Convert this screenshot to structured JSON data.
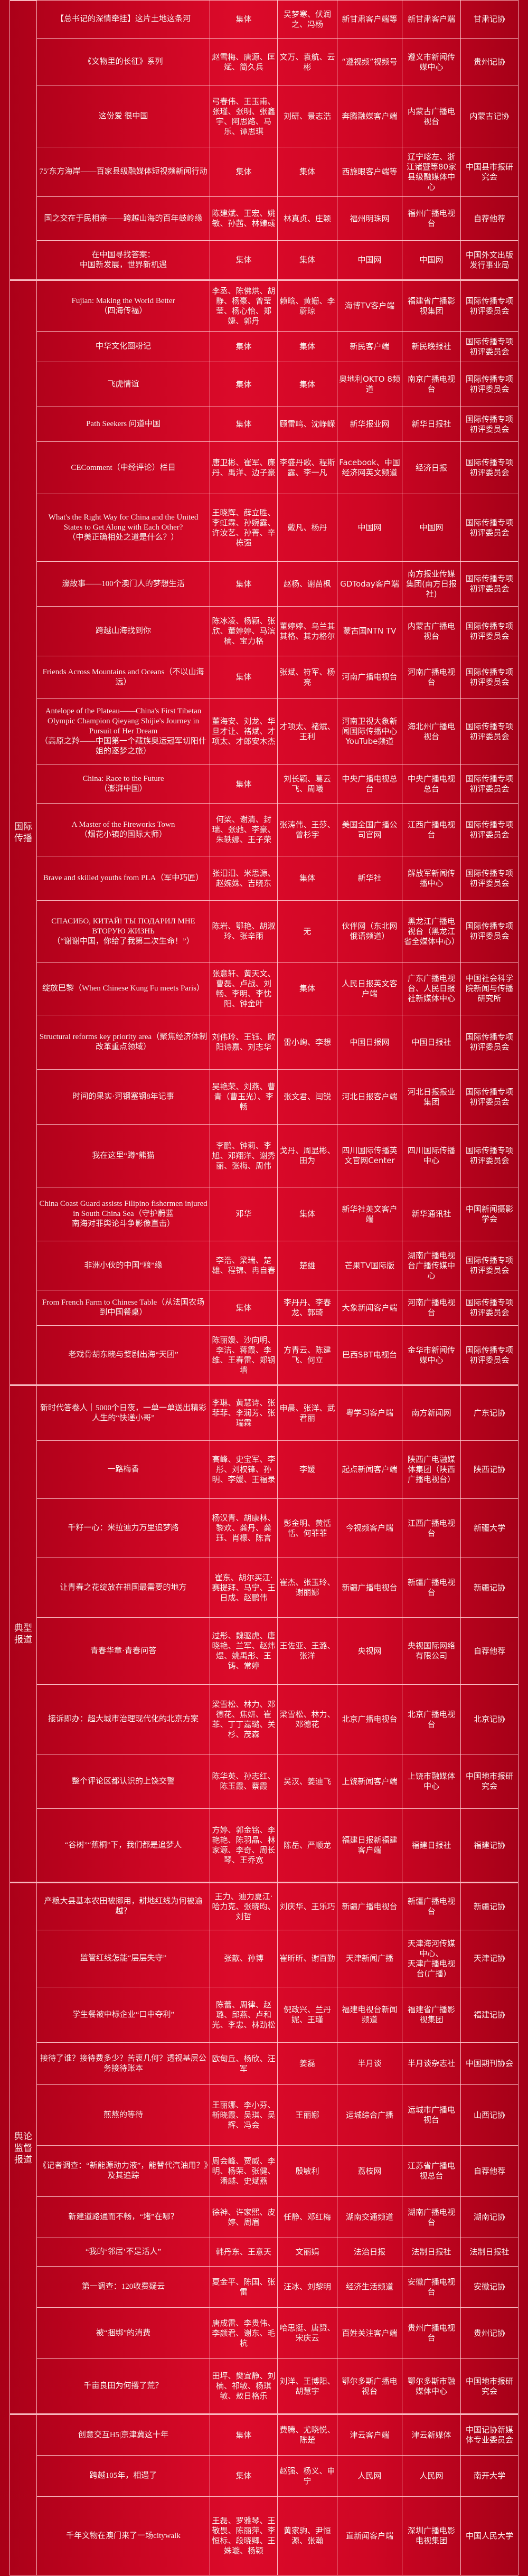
{
  "colors": {
    "background": "#c80522",
    "border": "#ffcdd2",
    "text": "#fff3f0"
  },
  "sections": [
    {
      "label": "",
      "rows": [
        {
          "title": "【总书记的深情牵挂】这片土地这条河",
          "authors": "集体",
          "editors": "吴梦寒、伏润之、冯杨",
          "platform": "新甘肃客户端等",
          "unit": "新甘肃客户端",
          "recommender": "甘肃记协"
        },
        {
          "title": "《文物里的长征》系列",
          "authors": "赵雪梅、唐源、匡斌、简久兵",
          "editors": "文万、袁航、云彬",
          "platform": "“遵视频”视频号",
          "unit": "遵义市新闻传媒中心",
          "recommender": "贵州记协"
        },
        {
          "title": "这份爱 很中国",
          "authors": "弓春伟、王玉甫、张瑾、张明、张鑫宇、阿思路、马乐、谭思琪",
          "editors": "刘研、景志浩",
          "platform": "奔腾融媒客户端",
          "unit": "内蒙古广播电视台",
          "recommender": "内蒙古记协"
        },
        {
          "title": "75′东方海岸——百家县级融媒体短视频新闻行动",
          "authors": "集体",
          "editors": "集体",
          "platform": "西施眼客户端等",
          "unit": "辽宁喀左、浙江诸暨等80家县级融媒体中心",
          "recommender": "中国县市报研究会"
        },
        {
          "title": "国之交在于民相亲——跨越山海的百年鼓岭缘",
          "authors": "陈建斌、王宏、姚敏、孙茜、林臻彧",
          "editors": "林真贞、庄颖",
          "platform": "福州明珠网",
          "unit": "福州广播电视台",
          "recommender": "自荐他荐"
        },
        {
          "title": "在中国寻找答案：\n中国新发展，世界新机遇",
          "authors": "集体",
          "editors": "集体",
          "platform": "中国网",
          "unit": "中国网",
          "recommender": "中国外文出版发行事业局"
        }
      ]
    },
    {
      "label": "国际\n传播",
      "rows": [
        {
          "title": "Fujian: Making the World Better\n（四海传福）",
          "authors": "李丞、陈佛烘、胡静、杨豪、曾莹莹、杨心怡、郑婕、郭丹",
          "editors": "赖晗、黄姗、李蔚琼",
          "platform": "海博TV客户端",
          "unit": "福建省广播影视集团",
          "recommender": "国际传播专项初评委员会"
        },
        {
          "title": "中华文化圈粉记",
          "authors": "集体",
          "editors": "集体",
          "platform": "新民客户端",
          "unit": "新民晚报社",
          "recommender": "国际传播专项初评委员会"
        },
        {
          "title": "飞虎情谊",
          "authors": "集体",
          "editors": "集体",
          "platform": "奥地利OKTO 8频道",
          "unit": "南京广播电视台",
          "recommender": "国际传播专项初评委员会"
        },
        {
          "title": "Path Seekers 问道中国",
          "authors": "集体",
          "editors": "顾雷鸣、沈峥嵘",
          "platform": "新华报业网",
          "unit": "新华日报社",
          "recommender": "国际传播专项初评委员会"
        },
        {
          "title": "CEComment（中经评论）栏目",
          "authors": "唐卫彬、崔军、廉丹、禹洋、边子豪",
          "editors": "李盛丹歌、程斯露、李一凡",
          "platform": "Facebook、中国经济网英文频道",
          "unit": "经济日报",
          "recommender": "国际传播专项初评委员会"
        },
        {
          "title": "What's the Right Way for China and the United States to Get Along with Each Other?\n（中美正确相处之道是什么？）",
          "authors": "王晓辉、薛立胜、李虹霖、孙婉露、许汝艺、孙菁、辛栋强",
          "editors": "戴凡、杨丹",
          "platform": "中国网",
          "unit": "中国网",
          "recommender": "国际传播专项初评委员会"
        },
        {
          "title": "濠故事——100个澳门人的梦想生活",
          "authors": "集体",
          "editors": "赵杨、谢苗枫",
          "platform": "GDToday客户端",
          "unit": "南方报业传媒集团(南方日报社)",
          "recommender": "国际传播专项初评委员会"
        },
        {
          "title": "跨越山海找到你",
          "authors": "陈冰凌、杨颖、张欣、董婷婷、马滨楠、宝力格",
          "editors": "董婷婷、乌兰其其格、其力格尔",
          "platform": "蒙古国NTN TV",
          "unit": "内蒙古广播电视台",
          "recommender": "国际传播专项初评委员会"
        },
        {
          "title": "Friends Across Mountains and Oceans（不以山海远）",
          "authors": "集体",
          "editors": "张斌、符军、杨亮",
          "platform": "河南广播电视台",
          "unit": "河南广播电视台",
          "recommender": "国际传播专项初评委员会"
        },
        {
          "title": "Antelope of the Plateau——China's First Tibetan Olympic Champion Qieyang Shijie's Journey in Pursuit of Her Dream\n（高原之羚——中国第一个藏族奥运冠军切阳什姐的逐梦之旅）",
          "authors": "董海安、刘龙、华旦才让、褚斌、才项太、才郎安木杰",
          "editors": "才项太、褚斌、王利",
          "platform": "河南卫视大象新闻国际传播中心YouTube频道",
          "unit": "海北州广播电视台",
          "recommender": "国际传播专项初评委员会"
        },
        {
          "title": "China: Race to the Future\n（澎湃中国）",
          "authors": "集体",
          "editors": "刘长颖、葛云飞、周曦",
          "platform": "中央广播电视总台",
          "unit": "中央广播电视总台",
          "recommender": "国际传播专项初评委员会"
        },
        {
          "title": "A Master of the Fireworks Town\n（烟花小镇的国际大师）",
          "authors": "何梁、谢清、封瑞、张驰、李豪、朱轶娜、王子荣",
          "editors": "张涛伟、王莎、曾杉宇",
          "platform": "美国全国广播公司官网",
          "unit": "江西广播电视台",
          "recommender": "国际传播专项初评委员会"
        },
        {
          "title": "Brave and skilled youths from PLA（军中巧匠）",
          "authors": "张汨汨、米思源、赵婉姝、吉晓东",
          "editors": "集体",
          "platform": "新华社",
          "unit": "解放军新闻传播中心",
          "recommender": "国际传播专项初评委员会"
        },
        {
          "title": "СПАСИБО, КИТАЙ! ТЫ ПОДАРИЛ МНЕ ВТОРУЮ ЖИЗНЬ\n（“谢谢中国，你给了我第二次生命！”）",
          "authors": "陈岩、鄂艳、胡淑玲、张辛雨",
          "editors": "无",
          "platform": "伙伴网（东北网俄语频道）",
          "unit": "黑龙江广播电视台（黑龙江省全媒体中心）",
          "recommender": "国际传播专项初评委员会"
        },
        {
          "title": "绽放巴黎（When Chinese Kung Fu meets Paris）",
          "authors": "张意轩、黄天文、曹磊、卢战、刘畅、李明、李忱阳、钟金叶",
          "editors": "集体",
          "platform": "人民日报英文客户端",
          "unit": "广东广播电视台、人民日报社新媒体中心",
          "recommender": "中国社会科学院新闻与传播研究所"
        },
        {
          "title": "Structural reforms key priority area（聚焦经济体制改革重点领域）",
          "authors": "刘伟玲、王钰、欧阳诗嘉、刘志华",
          "editors": "雷小峋、李想",
          "platform": "中国日报网",
          "unit": "中国日报社",
          "recommender": "国际传播专项初评委员会"
        },
        {
          "title": "时间的果实·河钢塞钢8年记事",
          "authors": "吴艳荣、刘燕、曹青（曹玉光）、李畅",
          "editors": "张文君、闫锐",
          "platform": "河北日报客户端",
          "unit": "河北日报报业集团",
          "recommender": "国际传播专项初评委员会"
        },
        {
          "title": "我在这里“蹲”熊猫",
          "authors": "李鹏、钟莉、李旭、邓翔洋、谢秀丽、张梅、周伟",
          "editors": "戈丹、周显彬、田为",
          "platform": "四川国际传播英文官网Center",
          "unit": "四川国际传播中心",
          "recommender": "国际传播专项初评委员会"
        },
        {
          "title": "China Coast Guard assists Filipino fishermen injured in South China Sea（守护蔚蓝\n南海对菲舆论斗争影像直击）",
          "authors": "邓华",
          "editors": "集体",
          "platform": "新华社英文客户端",
          "unit": "新华通讯社",
          "recommender": "中国新闻摄影学会"
        },
        {
          "title": "非洲小伙的中国“粮”缘",
          "authors": "李浩、梁瑞、楚雄、程锦、冉自春",
          "editors": "楚雄",
          "platform": "芒果TV国际版",
          "unit": "湖南广播电视台广播传媒中心",
          "recommender": "国际传播专项初评委员会"
        },
        {
          "title": "From French Farm to Chinese Table（从法国农场到中国餐桌）",
          "authors": "集体",
          "editors": "李丹丹、李春龙、郭琦",
          "platform": "大象新闻客户端",
          "unit": "河南广播电视台",
          "recommender": "国际传播专项初评委员会"
        },
        {
          "title": "老戏骨胡东晓与婺剧出海“天团”",
          "authors": "陈丽媛、沙向明、李洁、蒋霞、李维、王春雷、郑钢墙",
          "editors": "方青云、陈建飞、何立",
          "platform": "巴西SBT电视台",
          "unit": "金华市新闻传媒中心",
          "recommender": "国际传播专项初评委员会"
        }
      ]
    },
    {
      "label": "典型\n报道",
      "rows": [
        {
          "title": "新时代答卷人｜5000个日夜，一单一单送出精彩人生的“快递小哥”",
          "authors": "李琳、黄慧诗、张菲菲、李润芳、张瑞霖",
          "editors": "申晨、张洋、武君丽",
          "platform": "粤学习客户端",
          "unit": "南方新闻网",
          "recommender": "广东记协"
        },
        {
          "title": "一路梅香",
          "authors": "高峰、史宝军、李彤、刘权锋、孙明、李媛、王福录",
          "editors": "李媛",
          "platform": "起点新闻客户端",
          "unit": "陕西广电融媒体集团（陕西广播电视台）",
          "recommender": "陕西记协"
        },
        {
          "title": "千籽一心：米拉迪力万里追梦路",
          "authors": "杨汉青、胡康林、黎欢、龚丹、龚珏、肖檬、陈言",
          "editors": "彭金明、黄恬恬、何菲菲",
          "platform": "今视频客户端",
          "unit": "江西广播电视台",
          "recommender": "新疆大学"
        },
        {
          "title": "让青春之花绽放在祖国最需要的地方",
          "authors": "崔东、胡尔买江·赛提拜、马宁、王日成、赵鹏伟",
          "editors": "崔杰、张玉玲、谢丽娜",
          "platform": "新疆广播电视台",
          "unit": "新疆广播电视台",
          "recommender": "新疆记协"
        },
        {
          "title": "青春华章·青春问答",
          "authors": "过彤、魏驱虎、唐晓艳、兰军、赵炜煜、姚禹彤、王铸、常婷",
          "editors": "王佐亚、王潞、张洋",
          "platform": "央视网",
          "unit": "央视国际网络有限公司",
          "recommender": "自荐他荐"
        },
        {
          "title": "接诉即办：超大城市治理现代化的北京方案",
          "authors": "梁雪松、林力、邓德花、焦妍、崔菲、丁丁嘉璐、关杉、茂森",
          "editors": "梁雪松、林力、邓德花",
          "platform": "北京广播电视台",
          "unit": "北京广播电视台",
          "recommender": "北京记协"
        },
        {
          "title": "整个评论区都认识的上饶交警",
          "authors": "陈华英、孙志红、陈玉霞、蔡霞",
          "editors": "吴汉、姜迪飞",
          "platform": "上饶新闻客户端",
          "unit": "上饶市融媒体中心",
          "recommender": "中国地市报研究会"
        },
        {
          "title": "“谷树”“蕉桐”下，我们都是追梦人",
          "authors": "方婷、郭金铭、李艳艳、陈羽晶、林家源、李奇、周长琴、王乔宽",
          "editors": "陈岳、严顺龙",
          "platform": "福建日报新福建客户端",
          "unit": "福建日报社",
          "recommender": "福建记协"
        }
      ]
    },
    {
      "label": "舆论\n监督\n报道",
      "rows": [
        {
          "title": "产粮大县基本农田被挪用，耕地红线为何被逾越？",
          "authors": "王力、迪力夏江·哈力克、张晓昀、刘哲",
          "editors": "刘庆华、王乐巧",
          "platform": "新疆广播电视台",
          "unit": "新疆广播电视台",
          "recommender": "新疆记协"
        },
        {
          "title": "监管红线怎能“层层失守”",
          "authors": "张歆、孙博",
          "editors": "崔昕昕、谢百勤",
          "platform": "天津新闻广播",
          "unit": "天津海河传媒中心、\n天津广播电视台(广播)",
          "recommender": "天津记协"
        },
        {
          "title": "学生餐被中标企业“口中夺利”",
          "authors": "陈蕾、周律、赵璐、邱燕、卢和光、李忠、林劲松",
          "editors": "倪政兴、兰丹妮、王瑾",
          "platform": "福建电视台新闻频道",
          "unit": "福建省广播影视集团",
          "recommender": "福建记协"
        },
        {
          "title": "接待了谁？接待费多少？苦衷几何？透视基层公务接待账本",
          "authors": "欧甸丘、杨欣、汪军",
          "editors": "姜磊",
          "platform": "半月谈",
          "unit": "半月谈杂志社",
          "recommender": "中国期刊协会"
        },
        {
          "title": "煎熬的等待",
          "authors": "王丽娜、李小芬、靳晓霞、吴琪、吴辉、冯会",
          "editors": "王丽娜",
          "platform": "运城综合广播",
          "unit": "运城市广播电视台",
          "recommender": "山西记协"
        },
        {
          "title": "《记者调查：“新能源动力液”，能替代汽油用？》及其追踪",
          "authors": "周会峰、贾威、李明、杨荣、张健、潘越、史斌燕",
          "editors": "殷敏利",
          "platform": "荔枝网",
          "unit": "江苏省广播电视总台",
          "recommender": "自荐他荐"
        },
        {
          "title": "新建道路通而不畅，“堵”在哪？",
          "authors": "徐神、许家熙、皮婷、周眉",
          "editors": "任静、邓红梅",
          "platform": "湖南交通频道",
          "unit": "湖南广播电视台",
          "recommender": "湖南记协"
        },
        {
          "title": "“我的‘邻居’不是活人”",
          "authors": "韩丹东、王意天",
          "editors": "文丽娟",
          "platform": "法治日报",
          "unit": "法制日报社",
          "recommender": "法制日报社"
        },
        {
          "title": "第一调查：120收费疑云",
          "authors": "夏金平、陈国、张雷",
          "editors": "汪冰、刘黎明",
          "platform": "经济生活频道",
          "unit": "安徽广播电视台",
          "recommender": "安徽记协"
        },
        {
          "title": "被“捆绑”的消费",
          "authors": "唐成雷、李贵伟、李颜君、谢东、毛杭",
          "editors": "哈思挺、唐赟、宋庆云",
          "platform": "百姓关注客户端",
          "unit": "贵州广播电视台",
          "recommender": "贵州记协"
        },
        {
          "title": "千亩良田为何撂了荒？",
          "authors": "田坪、樊宜静、刘楠、祁敏、杨琪敏、敖日格乐",
          "editors": "刘洋、王博阳、胡慧宇",
          "platform": "鄂尔多斯广播电视台",
          "unit": "鄂尔多斯市融媒体中心",
          "recommender": "中国地市报研究会"
        }
      ]
    },
    {
      "label": "",
      "rows": [
        {
          "title": "创意交互H5|京津冀这十年",
          "authors": "集体",
          "editors": "费腾、尤晓悦、陈楚",
          "platform": "津云客户端",
          "unit": "津云新媒体",
          "recommender": "中国记协新媒体专业委员会"
        },
        {
          "title": "跨越105年，相遇了",
          "authors": "集体",
          "editors": "赵强、杨义、申宁",
          "platform": "人民网",
          "unit": "人民网",
          "recommender": "南开大学"
        },
        {
          "title": "千年文物在澳门来了一场citywalk",
          "authors": "王磊、罗雅琴、王敬畏、陈丽萍、李恒标、段晓卿、王姝璇、杨颖",
          "editors": "黄家驹、尹恒源、张瀚",
          "platform": "直新闻客户端",
          "unit": "深圳广播电影电视集团",
          "recommender": "中国人民大学"
        }
      ]
    }
  ]
}
